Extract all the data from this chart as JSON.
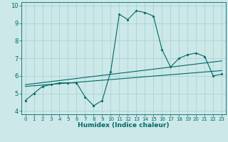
{
  "xlabel": "Humidex (Indice chaleur)",
  "xlim": [
    -0.5,
    23.5
  ],
  "ylim": [
    3.8,
    10.2
  ],
  "xticks": [
    0,
    1,
    2,
    3,
    4,
    5,
    6,
    7,
    8,
    9,
    10,
    11,
    12,
    13,
    14,
    15,
    16,
    17,
    18,
    19,
    20,
    21,
    22,
    23
  ],
  "yticks": [
    4,
    5,
    6,
    7,
    8,
    9,
    10
  ],
  "background_color": "#cce8e8",
  "grid_color": "#aad4d4",
  "line_color": "#006868",
  "curve1_x": [
    0,
    1,
    2,
    3,
    4,
    5,
    6,
    7,
    8,
    9,
    10,
    11,
    12,
    13,
    14,
    15,
    16,
    17,
    18,
    19,
    20,
    21,
    22,
    23
  ],
  "curve1_y": [
    4.6,
    5.0,
    5.4,
    5.5,
    5.6,
    5.6,
    5.6,
    4.8,
    4.3,
    4.6,
    6.25,
    9.5,
    9.2,
    9.7,
    9.6,
    9.4,
    7.5,
    6.5,
    7.0,
    7.2,
    7.3,
    7.1,
    6.0,
    6.1
  ],
  "curve2_x": [
    0,
    23
  ],
  "curve2_y": [
    5.4,
    6.3
  ],
  "curve3_x": [
    0,
    23
  ],
  "curve3_y": [
    5.5,
    6.85
  ]
}
